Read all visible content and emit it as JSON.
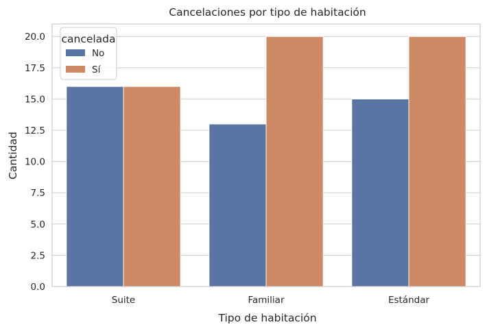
{
  "chart_data": {
    "type": "bar",
    "title": "Cancelaciones por tipo de habitación",
    "xlabel": "Tipo de habitación",
    "ylabel": "Cantidad",
    "categories": [
      "Suite",
      "Familiar",
      "Estándar"
    ],
    "series": [
      {
        "name": "No",
        "values": [
          16,
          13,
          15
        ],
        "color": "#5875a4"
      },
      {
        "name": "Sí",
        "values": [
          16,
          20,
          20
        ],
        "color": "#cc8963"
      }
    ],
    "ylim": [
      0,
      21
    ],
    "yticks": [
      "0.0",
      "2.5",
      "5.0",
      "7.5",
      "10.0",
      "12.5",
      "15.0",
      "17.5",
      "20.0"
    ],
    "ytick_values": [
      0,
      2.5,
      5,
      7.5,
      10,
      12.5,
      15,
      17.5,
      20
    ],
    "grid": "horizontal",
    "legend": {
      "title": "cancelada",
      "placement": "top-left"
    },
    "colors": {
      "grid": "#cccccc",
      "frame": "#cccccc",
      "text": "#262626"
    }
  }
}
